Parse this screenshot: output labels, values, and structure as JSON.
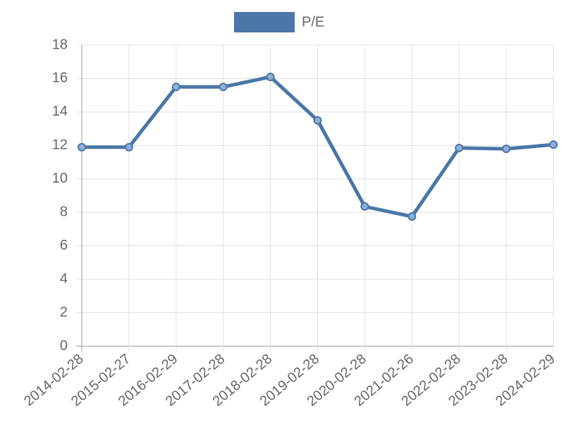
{
  "chart_data": {
    "type": "line",
    "categories": [
      "2014-02-28",
      "2015-02-27",
      "2016-02-29",
      "2017-02-28",
      "2018-02-28",
      "2019-02-28",
      "2020-02-28",
      "2021-02-26",
      "2022-02-28",
      "2023-02-28",
      "2024-02-29"
    ],
    "series": [
      {
        "name": "P/E",
        "color": "#4a76a8",
        "values": [
          11.9,
          11.9,
          15.5,
          15.5,
          16.1,
          13.5,
          8.35,
          7.75,
          11.85,
          11.8,
          12.05
        ]
      }
    ],
    "ylim": [
      0,
      18
    ],
    "yticks": [
      0,
      2,
      4,
      6,
      8,
      10,
      12,
      14,
      16,
      18
    ],
    "grid": true,
    "legend": "top"
  }
}
